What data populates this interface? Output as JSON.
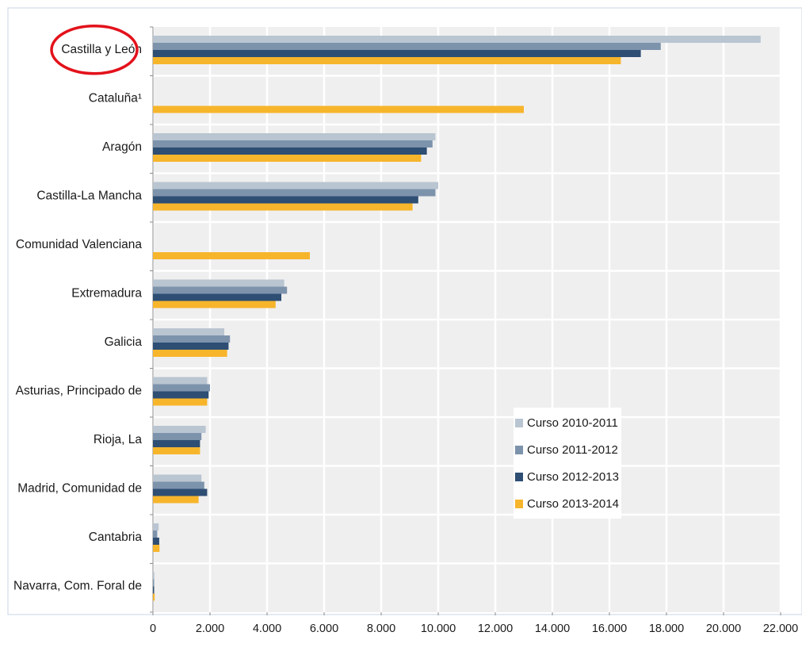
{
  "chart_data": {
    "type": "bar",
    "orientation": "horizontal",
    "categories": [
      "Castilla y León",
      "Cataluña¹",
      "Aragón",
      "Castilla-La Mancha",
      "Comunidad Valenciana",
      "Extremadura",
      "Galicia",
      "Asturias, Principado de",
      "Rioja, La",
      "Madrid, Comunidad de",
      "Cantabria",
      "Navarra, Com. Foral de"
    ],
    "series": [
      {
        "name": "Curso 2010-2011",
        "color": "#b9c5d1",
        "values": [
          21300,
          null,
          9900,
          10000,
          null,
          4600,
          2500,
          1900,
          1850,
          1700,
          200,
          50
        ]
      },
      {
        "name": "Curso 2011-2012",
        "color": "#7d93ac",
        "values": [
          17800,
          null,
          9800,
          9900,
          null,
          4700,
          2700,
          2000,
          1700,
          1800,
          150,
          40
        ]
      },
      {
        "name": "Curso 2012-2013",
        "color": "#2e4e73",
        "values": [
          17100,
          null,
          9600,
          9300,
          null,
          4500,
          2650,
          1950,
          1650,
          1900,
          220,
          30
        ]
      },
      {
        "name": "Curso 2013-2014",
        "color": "#f7b52c",
        "values": [
          16400,
          13000,
          9400,
          9100,
          5500,
          4300,
          2600,
          1900,
          1650,
          1600,
          230,
          60
        ]
      }
    ],
    "xlim": [
      0,
      22000
    ],
    "xticks": [
      "0",
      "2.000",
      "4.000",
      "6.000",
      "8.000",
      "10.000",
      "12.000",
      "14.000",
      "16.000",
      "18.000",
      "20.000",
      "22.000"
    ],
    "grid": true,
    "legend_position": "center-right",
    "annotation": {
      "type": "circle",
      "target": "Castilla y León",
      "color": "#e3121b"
    }
  }
}
